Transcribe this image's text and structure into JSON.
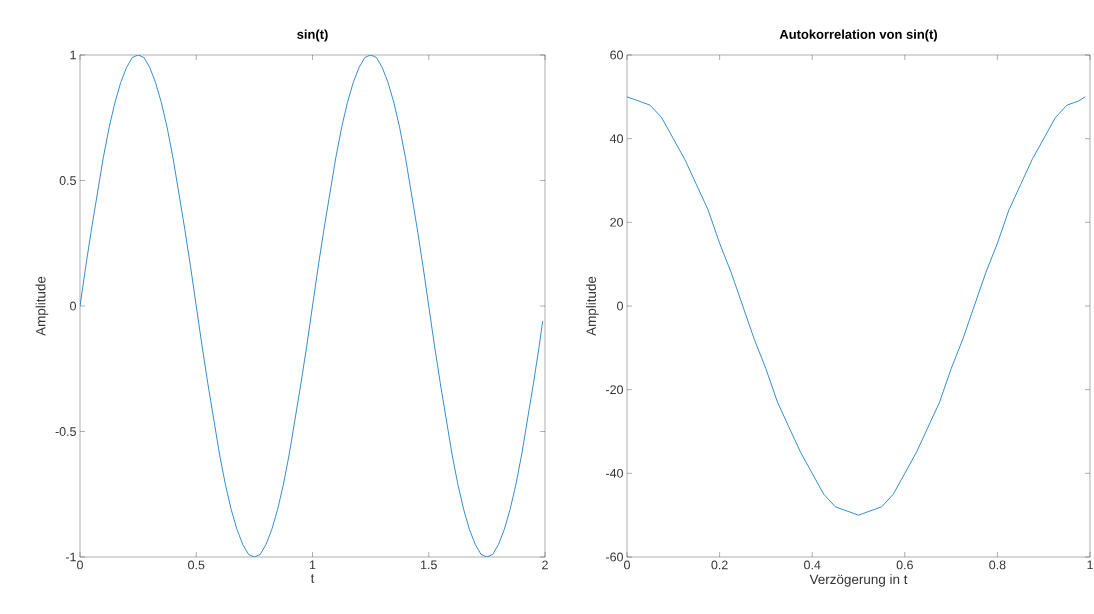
{
  "chart_data": [
    {
      "type": "line",
      "title": "sin(t)",
      "xlabel": "t",
      "ylabel": "Amplitude",
      "xlim": [
        0,
        2
      ],
      "ylim": [
        -1,
        1
      ],
      "xticks": [
        0,
        0.5,
        1,
        1.5,
        2
      ],
      "yticks": [
        -1,
        -0.5,
        0,
        0.5,
        1
      ],
      "x": [
        0,
        0.025,
        0.05,
        0.075,
        0.1,
        0.125,
        0.15,
        0.175,
        0.2,
        0.225,
        0.25,
        0.275,
        0.3,
        0.325,
        0.35,
        0.375,
        0.4,
        0.425,
        0.45,
        0.475,
        0.5,
        0.525,
        0.55,
        0.575,
        0.6,
        0.625,
        0.65,
        0.675,
        0.7,
        0.725,
        0.75,
        0.775,
        0.8,
        0.825,
        0.85,
        0.875,
        0.9,
        0.925,
        0.95,
        0.975,
        1,
        1.025,
        1.05,
        1.075,
        1.1,
        1.125,
        1.15,
        1.175,
        1.2,
        1.225,
        1.25,
        1.275,
        1.3,
        1.325,
        1.35,
        1.375,
        1.4,
        1.425,
        1.45,
        1.475,
        1.5,
        1.525,
        1.55,
        1.575,
        1.6,
        1.625,
        1.65,
        1.675,
        1.7,
        1.725,
        1.75,
        1.775,
        1.8,
        1.825,
        1.85,
        1.875,
        1.9,
        1.925,
        1.95,
        1.975,
        1.99
      ],
      "series": [
        {
          "color": "#0072bd",
          "values": [
            0,
            0.16,
            0.31,
            0.45,
            0.59,
            0.71,
            0.81,
            0.89,
            0.95,
            0.99,
            1,
            0.99,
            0.95,
            0.89,
            0.81,
            0.71,
            0.59,
            0.45,
            0.31,
            0.16,
            0,
            -0.16,
            -0.31,
            -0.45,
            -0.59,
            -0.71,
            -0.81,
            -0.89,
            -0.95,
            -0.99,
            -1,
            -0.99,
            -0.95,
            -0.89,
            -0.81,
            -0.71,
            -0.59,
            -0.45,
            -0.31,
            -0.16,
            0,
            0.16,
            0.31,
            0.45,
            0.59,
            0.71,
            0.81,
            0.89,
            0.95,
            0.99,
            1,
            0.99,
            0.95,
            0.89,
            0.81,
            0.71,
            0.59,
            0.45,
            0.31,
            0.16,
            0,
            -0.16,
            -0.31,
            -0.45,
            -0.59,
            -0.71,
            -0.81,
            -0.89,
            -0.95,
            -0.99,
            -1,
            -0.99,
            -0.95,
            -0.89,
            -0.81,
            -0.71,
            -0.59,
            -0.45,
            -0.31,
            -0.16,
            -0.06
          ]
        }
      ]
    },
    {
      "type": "line",
      "title": "Autokorrelation von sin(t)",
      "xlabel": "Verzögerung in t",
      "ylabel": "Amplitude",
      "xlim": [
        0,
        1
      ],
      "ylim": [
        -60,
        60
      ],
      "xticks": [
        0,
        0.2,
        0.4,
        0.6,
        0.8,
        1
      ],
      "yticks": [
        -60,
        -40,
        -20,
        0,
        20,
        40,
        60
      ],
      "x": [
        0,
        0.025,
        0.05,
        0.075,
        0.1,
        0.125,
        0.15,
        0.175,
        0.2,
        0.225,
        0.25,
        0.275,
        0.3,
        0.325,
        0.35,
        0.375,
        0.4,
        0.425,
        0.45,
        0.475,
        0.5,
        0.525,
        0.55,
        0.575,
        0.6,
        0.625,
        0.65,
        0.675,
        0.7,
        0.725,
        0.75,
        0.775,
        0.8,
        0.825,
        0.85,
        0.875,
        0.9,
        0.925,
        0.95,
        0.975,
        0.99
      ],
      "series": [
        {
          "color": "#0072bd",
          "values": [
            50,
            49,
            48,
            45,
            40,
            35,
            29,
            23,
            15,
            8,
            0,
            -8,
            -15,
            -23,
            -29,
            -35,
            -40,
            -45,
            -48,
            -49,
            -50,
            -49,
            -48,
            -45,
            -40,
            -35,
            -29,
            -23,
            -15,
            -8,
            0,
            8,
            15,
            23,
            29,
            35,
            40,
            45,
            48,
            49,
            50
          ]
        }
      ]
    }
  ]
}
